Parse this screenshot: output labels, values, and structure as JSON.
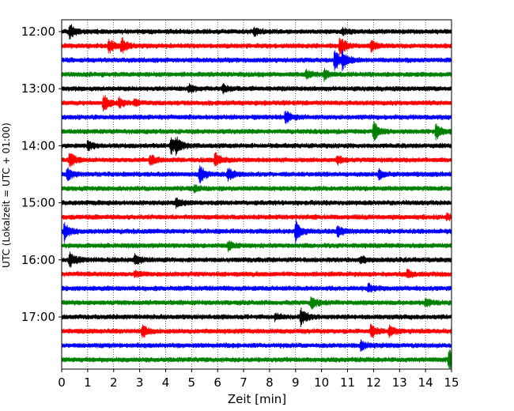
{
  "chart_data": {
    "type": "line",
    "title": "",
    "xlabel": "Zeit  [min]",
    "ylabel": "UTC (Lokalzeit = UTC + 01:00)",
    "xlim": [
      0,
      15
    ],
    "x_ticks": [
      0,
      1,
      2,
      3,
      4,
      5,
      6,
      7,
      8,
      9,
      10,
      11,
      12,
      13,
      14,
      15
    ],
    "y_tick_labels": [
      "12:00",
      "13:00",
      "14:00",
      "15:00",
      "16:00",
      "17:00"
    ],
    "row_interval_min": 15,
    "start_time": "12:00",
    "grid": "vertical dotted lines at each minute",
    "colors": [
      "#000000",
      "#ff0000",
      "#0000ff",
      "#008000"
    ],
    "series": [
      {
        "start": "12:00",
        "color": "#000000",
        "events": [
          {
            "t": 0.3,
            "a": 1.0
          },
          {
            "t": 7.4,
            "a": 0.6
          },
          {
            "t": 10.8,
            "a": 0.5
          }
        ]
      },
      {
        "start": "12:15",
        "color": "#ff0000",
        "events": [
          {
            "t": 1.8,
            "a": 1.0
          },
          {
            "t": 2.3,
            "a": 1.1
          },
          {
            "t": 10.7,
            "a": 1.3
          },
          {
            "t": 11.9,
            "a": 0.8
          }
        ]
      },
      {
        "start": "12:30",
        "color": "#0000ff",
        "events": [
          {
            "t": 10.5,
            "a": 1.4
          },
          {
            "t": 10.8,
            "a": 1.0
          }
        ]
      },
      {
        "start": "12:45",
        "color": "#008000",
        "events": [
          {
            "t": 9.4,
            "a": 0.5
          },
          {
            "t": 10.1,
            "a": 0.7
          }
        ]
      },
      {
        "start": "13:00",
        "color": "#000000",
        "events": [
          {
            "t": 4.9,
            "a": 0.6
          },
          {
            "t": 6.2,
            "a": 0.5
          }
        ]
      },
      {
        "start": "13:15",
        "color": "#ff0000",
        "events": [
          {
            "t": 1.6,
            "a": 1.2
          },
          {
            "t": 2.2,
            "a": 0.6
          },
          {
            "t": 2.8,
            "a": 0.4
          }
        ]
      },
      {
        "start": "13:30",
        "color": "#0000ff",
        "events": [
          {
            "t": 8.6,
            "a": 0.9
          }
        ]
      },
      {
        "start": "13:45",
        "color": "#008000",
        "events": [
          {
            "t": 12.0,
            "a": 1.3
          },
          {
            "t": 14.4,
            "a": 1.0
          }
        ]
      },
      {
        "start": "14:00",
        "color": "#000000",
        "events": [
          {
            "t": 1.0,
            "a": 0.7
          },
          {
            "t": 4.2,
            "a": 1.2
          },
          {
            "t": 4.4,
            "a": 0.9
          }
        ]
      },
      {
        "start": "14:15",
        "color": "#ff0000",
        "events": [
          {
            "t": 0.3,
            "a": 1.1
          },
          {
            "t": 3.4,
            "a": 0.7
          },
          {
            "t": 5.9,
            "a": 1.0
          },
          {
            "t": 10.6,
            "a": 0.5
          }
        ]
      },
      {
        "start": "14:30",
        "color": "#0000ff",
        "events": [
          {
            "t": 0.2,
            "a": 0.9
          },
          {
            "t": 5.3,
            "a": 1.3
          },
          {
            "t": 6.4,
            "a": 0.8
          },
          {
            "t": 12.2,
            "a": 0.6
          }
        ]
      },
      {
        "start": "14:45",
        "color": "#008000",
        "events": [
          {
            "t": 5.1,
            "a": 0.4
          }
        ]
      },
      {
        "start": "15:00",
        "color": "#000000",
        "events": [
          {
            "t": 4.4,
            "a": 0.6
          }
        ]
      },
      {
        "start": "15:15",
        "color": "#ff0000",
        "events": [
          {
            "t": 14.8,
            "a": 0.4
          }
        ]
      },
      {
        "start": "15:30",
        "color": "#0000ff",
        "events": [
          {
            "t": 0.1,
            "a": 1.2
          },
          {
            "t": 9.0,
            "a": 1.5
          },
          {
            "t": 10.6,
            "a": 0.8
          }
        ]
      },
      {
        "start": "15:45",
        "color": "#008000",
        "events": [
          {
            "t": 6.4,
            "a": 0.6
          }
        ]
      },
      {
        "start": "16:00",
        "color": "#000000",
        "events": [
          {
            "t": 0.3,
            "a": 1.1
          },
          {
            "t": 2.8,
            "a": 0.7
          },
          {
            "t": 11.5,
            "a": 0.5
          }
        ]
      },
      {
        "start": "16:15",
        "color": "#ff0000",
        "events": [
          {
            "t": 2.8,
            "a": 0.4
          },
          {
            "t": 13.3,
            "a": 0.5
          }
        ]
      },
      {
        "start": "16:30",
        "color": "#0000ff",
        "events": [
          {
            "t": 11.8,
            "a": 0.6
          }
        ]
      },
      {
        "start": "16:45",
        "color": "#008000",
        "events": [
          {
            "t": 9.6,
            "a": 0.9
          },
          {
            "t": 14.0,
            "a": 0.6
          }
        ]
      },
      {
        "start": "17:00",
        "color": "#000000",
        "events": [
          {
            "t": 9.2,
            "a": 1.2
          },
          {
            "t": 8.2,
            "a": 0.4
          }
        ]
      },
      {
        "start": "17:15",
        "color": "#ff0000",
        "events": [
          {
            "t": 3.1,
            "a": 0.9
          },
          {
            "t": 11.9,
            "a": 1.0
          },
          {
            "t": 12.6,
            "a": 0.8
          }
        ]
      },
      {
        "start": "17:30",
        "color": "#0000ff",
        "events": [
          {
            "t": 11.5,
            "a": 0.6
          }
        ]
      },
      {
        "start": "17:45",
        "color": "#008000",
        "events": [
          {
            "t": 14.9,
            "a": 1.4
          }
        ]
      }
    ]
  }
}
